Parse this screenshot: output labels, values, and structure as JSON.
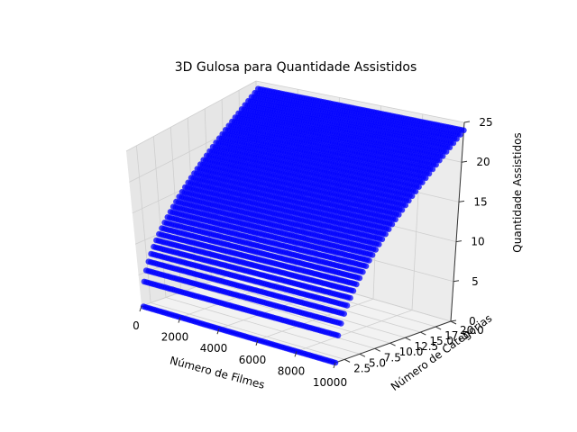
{
  "chart_data": {
    "type": "scatter",
    "projection": "3d",
    "title": "3D Gulosa para Quantidade Assistidos",
    "xlabel": "Número de Filmes",
    "ylabel": "Número de Categorias",
    "zlabel": "Quantidade Assistidos",
    "xlim": [
      0,
      10000
    ],
    "ylim": [
      1,
      20
    ],
    "zlim": [
      0,
      25
    ],
    "xticks": [
      "0",
      "2000",
      "4000",
      "6000",
      "8000",
      "10000"
    ],
    "yticks": [
      "2.5",
      "5.0",
      "7.5",
      "10.0",
      "12.5",
      "15.0",
      "17.5",
      "20.0"
    ],
    "zticks": [
      "0",
      "5",
      "10",
      "15",
      "20",
      "25"
    ],
    "grid": true,
    "marker_color": "#0000ff",
    "series": [
      {
        "x_range": [
          100,
          10000
        ],
        "y_range": [
          1,
          20
        ],
        "z_at_y_min": 0,
        "z_at_y_max": 24,
        "note_shape": "z rises with number of categories, saturating near 24; z is ~0 at y=1"
      }
    ]
  }
}
